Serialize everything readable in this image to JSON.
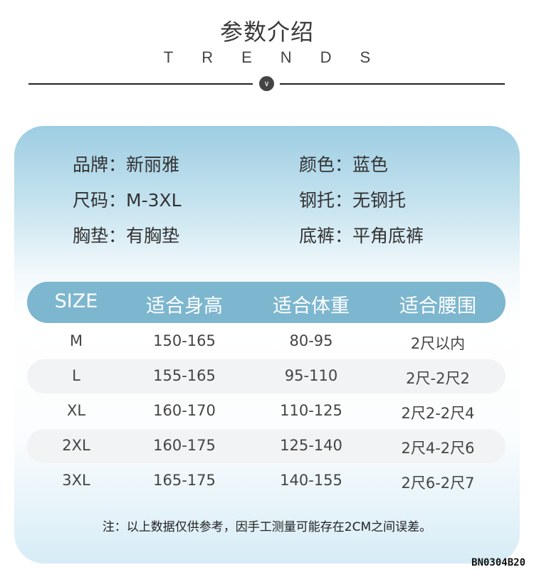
{
  "header": {
    "title": "参数介绍",
    "subtitle": "TRENDS",
    "divider_icon": "chevron-down-icon"
  },
  "specs": [
    {
      "label": "品牌：",
      "value": "新丽雅"
    },
    {
      "label": "颜色：",
      "value": "蓝色"
    },
    {
      "label": "尺码：",
      "value": "M-3XL"
    },
    {
      "label": "钢托：",
      "value": "无钢托"
    },
    {
      "label": "胸垫：",
      "value": "有胸垫"
    },
    {
      "label": "底裤：",
      "value": "平角底裤"
    }
  ],
  "size_table": {
    "headers": [
      "SIZE",
      "适合身高",
      "适合体重",
      "适合腰围"
    ],
    "rows": [
      [
        "M",
        "150-165",
        "80-95",
        "2尺以内"
      ],
      [
        "L",
        "155-165",
        "95-110",
        "2尺-2尺2"
      ],
      [
        "XL",
        "160-170",
        "110-125",
        "2尺2-2尺4"
      ],
      [
        "2XL",
        "160-175",
        "125-140",
        "2尺4-2尺6"
      ],
      [
        "3XL",
        "165-175",
        "140-155",
        "2尺6-2尺7"
      ]
    ]
  },
  "note": "注：以上数据仅供参考，因手工测量可能存在2CM之间误差。",
  "product_code": "BN0304B20",
  "colors": {
    "header_bar": "#7db6cf",
    "card_top": "#9dcde2",
    "stripe": "#f1f3f4"
  }
}
